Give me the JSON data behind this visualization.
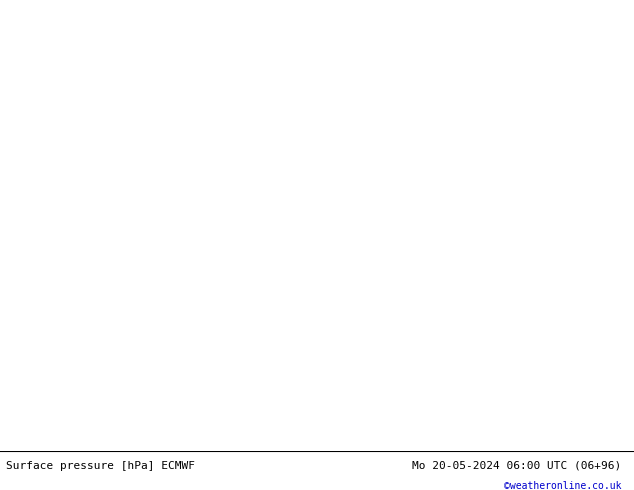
{
  "title_left": "Surface pressure [hPa] ECMWF",
  "title_right": "Mo 20-05-2024 06:00 UTC (06+96)",
  "credit": "©weatheronline.co.uk",
  "land_color": "#c8f0c8",
  "sea_color": "#e0e0e0",
  "ocean_color": "#d8d8d8",
  "footer_bg": "#ffffff",
  "credit_color": "#0000cc",
  "figsize": [
    6.34,
    4.9
  ],
  "dpi": 100,
  "lon_min": -30,
  "lon_max": 45,
  "lat_min": 27,
  "lat_max": 72
}
